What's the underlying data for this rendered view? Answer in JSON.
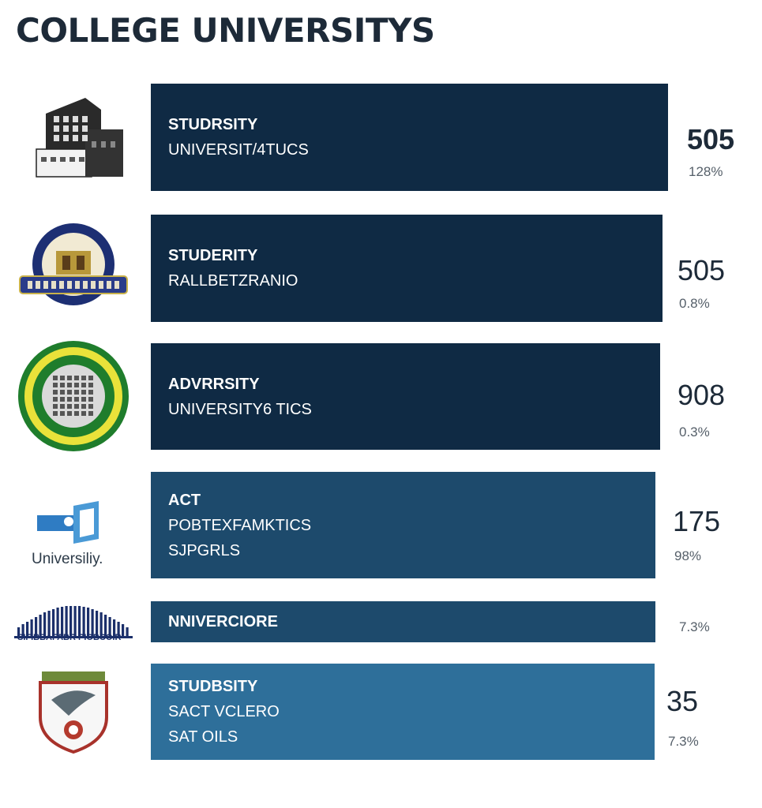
{
  "header": {
    "title": "COLLEGE UNIVERSITYS"
  },
  "chart_data": {
    "type": "bar",
    "orientation": "horizontal",
    "title": "COLLEGE UNIVERSITYS",
    "colors": [
      "#0f2a44",
      "#0f2a44",
      "#0f2a44",
      "#1d4a6c",
      "#1d4a6c",
      "#2e6f9a"
    ],
    "rows": [
      {
        "logo": "building-logo",
        "lines": [
          "STUDRSITY",
          "UNIVERSIT/4TUCS"
        ],
        "value": "505",
        "percent": "128%",
        "bar_fraction": 1.0
      },
      {
        "logo": "blue-seal-logo",
        "lines": [
          "STUDERITY",
          "RALLBETZRANIO"
        ],
        "value": "505",
        "percent": "0.8%",
        "bar_fraction": 0.99
      },
      {
        "logo": "green-seal-logo",
        "lines": [
          "ADVRRSITY",
          "UNIVERSITY6 TICS"
        ],
        "value": "908",
        "percent": "0.3%",
        "bar_fraction": 0.985
      },
      {
        "logo": "tech-logo",
        "logo_text": "Universiliy.",
        "lines": [
          "ACT",
          "POBTEXFAMKTICS",
          "SJPGRLS"
        ],
        "value": "175",
        "percent": "98%",
        "bar_fraction": 0.975
      },
      {
        "logo": "stripes-logo",
        "logo_text": "SIFIBBAFABR PIOBCOIR",
        "lines": [
          "NNIVERCIORE"
        ],
        "value": "",
        "percent": "7.3%",
        "bar_fraction": 0.975
      },
      {
        "logo": "shield-logo",
        "lines": [
          "STUDBSITY",
          "SACT VCLERO",
          "SAT OILS"
        ],
        "value": "35",
        "percent": "7.3%",
        "bar_fraction": 0.974
      }
    ]
  }
}
